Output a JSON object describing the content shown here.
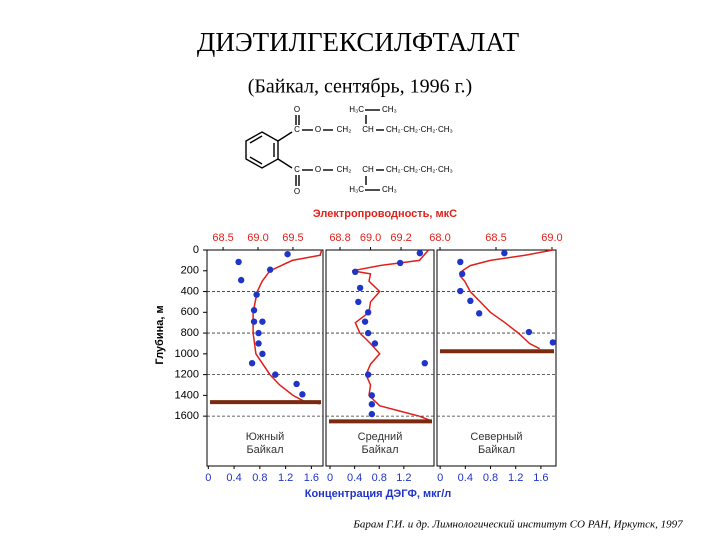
{
  "title": "ДИЭТИЛГЕКСИЛФТАЛАТ",
  "subtitle": "(Байкал, сентябрь, 1996 г.)",
  "citation": "Барам Г.И. и др. Лимнологический институт СО РАН, Иркутск, 1997",
  "formula": {
    "upper": {
      "o_double": "O",
      "c": "C",
      "o_ester": "O",
      "ch2": "CH₂",
      "ch": "CH",
      "chain": "CH₂·CH₂·CH₂·CH₃",
      "branch_left": "H₃C",
      "branch_right": "CH₃"
    },
    "lower": {
      "o_double": "O",
      "c": "C",
      "o_ester": "O",
      "ch2": "CH₂",
      "ch": "CH",
      "chain": "CH₂·CH₂·CH₂·CH₃",
      "branch_left": "H₃C",
      "branch_right": "CH₃"
    }
  },
  "axes": {
    "top_title": "Электропроводность, мкС",
    "bottom_title": "Концентрация ДЭГФ, мкг/л",
    "y_title": "Глубина, м",
    "top_color": "#e0201b",
    "bottom_color": "#1f35c8"
  },
  "chart_data": [
    {
      "type": "profile",
      "label": [
        "Южный",
        "Байкал"
      ],
      "ylim": [
        0,
        2080
      ],
      "yticks": [
        0,
        200,
        400,
        600,
        800,
        1000,
        1200,
        1400,
        1600
      ],
      "grid_depths": [
        400,
        800,
        1200,
        1600
      ],
      "xlim": [
        -0.02,
        1.78
      ],
      "xticks": [
        0,
        0.4,
        0.8,
        1.2,
        1.6
      ],
      "x2lim": [
        68.27,
        69.93
      ],
      "x2ticks": [
        68.5,
        {
          "value": 69,
          "label": "69.0"
        },
        69.5
      ],
      "conductivity": {
        "color": "#e0201b",
        "depths": [
          0,
          50,
          100,
          200,
          300,
          400,
          600,
          800,
          1000,
          1200,
          1300,
          1400,
          1460,
          1480
        ],
        "values": [
          69.91,
          69.89,
          69.49,
          69.17,
          69.06,
          68.99,
          68.93,
          68.93,
          68.97,
          69.17,
          69.31,
          69.5,
          69.67,
          69.89
        ]
      },
      "concentration": {
        "color": "#1f35c8",
        "depths": [
          40,
          115,
          190,
          290,
          430,
          580,
          690,
          690,
          800,
          900,
          1000,
          1090,
          1200,
          1290,
          1390
        ],
        "values": [
          1.23,
          0.47,
          0.96,
          0.51,
          0.75,
          0.71,
          0.71,
          0.84,
          0.78,
          0.78,
          0.84,
          0.68,
          1.04,
          1.37,
          1.46
        ]
      },
      "sediment_depth": 1465,
      "sediment_color": "#7a2a10"
    },
    {
      "type": "profile",
      "label": [
        "Средний",
        "Байкал"
      ],
      "ylim": [
        0,
        2080
      ],
      "grid_depths": [
        400,
        800,
        1200,
        1600
      ],
      "xlim": [
        -0.065,
        1.69
      ],
      "xticks": [
        0,
        0.4,
        0.8,
        1.2
      ],
      "x2lim": [
        68.708,
        69.416
      ],
      "x2ticks": [
        68.8,
        {
          "value": 69,
          "label": "69.0"
        },
        69.2
      ],
      "conductivity": {
        "color": "#e0201b",
        "depths": [
          0,
          100,
          150,
          200,
          230,
          300,
          400,
          500,
          600,
          700,
          800,
          900,
          1000,
          1100,
          1200,
          1300,
          1400,
          1500,
          1550,
          1600,
          1640
        ],
        "values": [
          69.38,
          69.32,
          69.06,
          68.88,
          69.0,
          68.99,
          69.06,
          69.0,
          68.99,
          68.9,
          68.93,
          69.0,
          69.06,
          69.0,
          68.97,
          69.0,
          68.99,
          69.06,
          69.19,
          69.32,
          69.39
        ]
      },
      "concentration": {
        "color": "#1f35c8",
        "depths": [
          30,
          125,
          210,
          365,
          500,
          600,
          690,
          800,
          900,
          1090,
          1200,
          1400,
          1485,
          1580
        ],
        "values": [
          1.46,
          1.14,
          0.41,
          0.49,
          0.46,
          0.62,
          0.57,
          0.62,
          0.73,
          1.54,
          0.62,
          0.68,
          0.68,
          0.68
        ]
      },
      "sediment_depth": 1650,
      "sediment_color": "#7a2a10"
    },
    {
      "type": "profile",
      "label": [
        "Северный",
        "Байкал"
      ],
      "ylim": [
        0,
        2080
      ],
      "grid_depths": [
        400,
        800,
        1200,
        1600
      ],
      "xlim": [
        -0.05,
        1.84
      ],
      "xticks": [
        0,
        0.4,
        0.8,
        1.2,
        1.6
      ],
      "x2lim": [
        67.973,
        69.036
      ],
      "x2ticks": [
        {
          "value": 68,
          "label": "68.0"
        },
        68.5,
        {
          "value": 69,
          "label": "69.0"
        }
      ],
      "conductivity": {
        "color": "#e0201b",
        "depths": [
          0,
          50,
          100,
          150,
          200,
          250,
          300,
          400,
          500,
          600,
          700,
          800,
          900,
          950
        ],
        "values": [
          69.01,
          68.76,
          68.45,
          68.27,
          68.2,
          68.18,
          68.22,
          68.27,
          68.36,
          68.45,
          68.58,
          68.7,
          68.8,
          68.89
        ]
      },
      "concentration": {
        "color": "#1f35c8",
        "depths": [
          30,
          115,
          230,
          395,
          490,
          610,
          790,
          890
        ],
        "values": [
          1.02,
          0.32,
          0.35,
          0.32,
          0.48,
          0.62,
          1.41,
          1.79
        ]
      },
      "sediment_depth": 975,
      "sediment_color": "#7a2a10"
    }
  ]
}
